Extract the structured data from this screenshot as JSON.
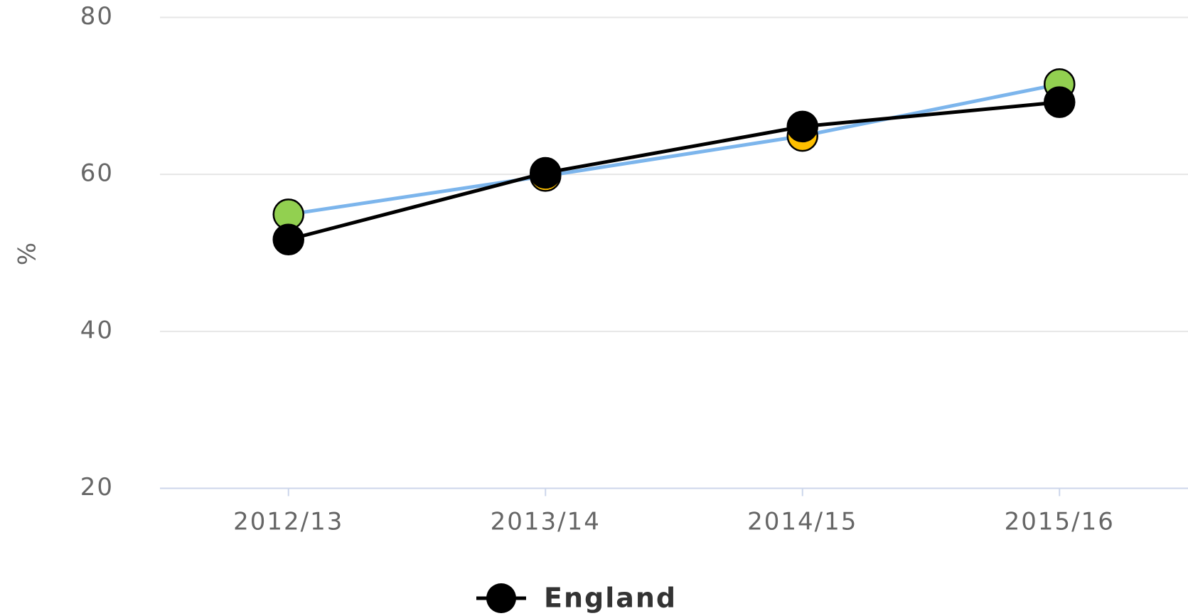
{
  "chart_data": {
    "type": "line",
    "y_label": "%",
    "categories": [
      "2012/13",
      "2013/14",
      "2014/15",
      "2015/16"
    ],
    "series": [
      {
        "name": "England",
        "color": "#000000",
        "marker_color": "#000000",
        "values": [
          51.7,
          60.2,
          66.1,
          69.2
        ]
      },
      {
        "color": "#7cb5ec",
        "marker_colors": [
          "#92d050",
          "#ffc000",
          "#ffc000",
          "#92d050"
        ],
        "values": [
          54.9,
          59.8,
          64.9,
          71.5
        ]
      }
    ],
    "ylim": [
      20,
      80
    ],
    "yticks": [
      20,
      40,
      60,
      80
    ],
    "grid": true,
    "legend": "bottom"
  }
}
